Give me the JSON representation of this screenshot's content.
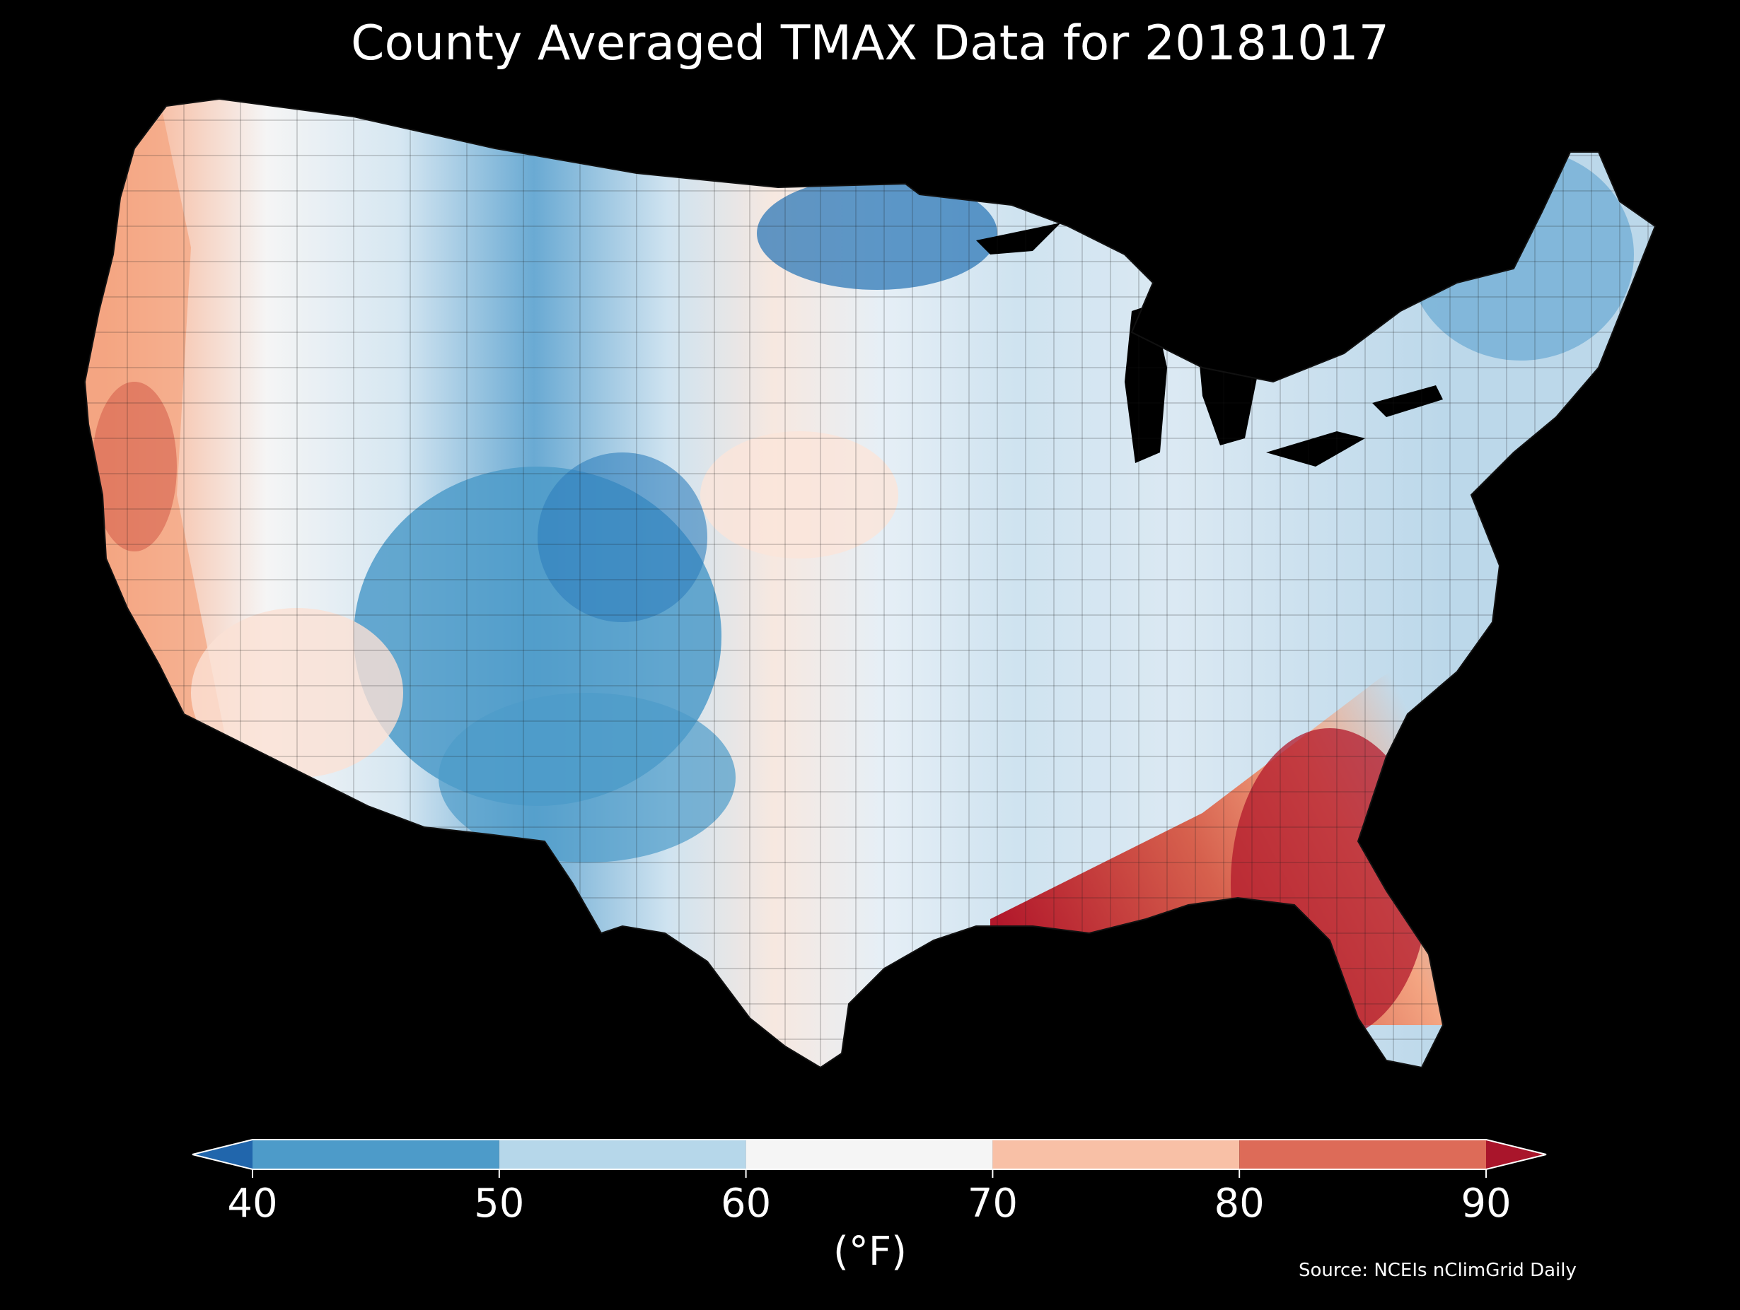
{
  "title": "County Averaged TMAX Data for 20181017",
  "colorbar": {
    "unit_label": "(°F)",
    "ticks": [
      "40",
      "50",
      "60",
      "70",
      "80",
      "90"
    ],
    "bins": [
      {
        "min": 40,
        "max": 50,
        "color": "#4d9bc9"
      },
      {
        "min": 50,
        "max": 60,
        "color": "#b6d7ea"
      },
      {
        "min": 60,
        "max": 70,
        "color": "#f5f5f5"
      },
      {
        "min": 70,
        "max": 80,
        "color": "#f8c0a6"
      },
      {
        "min": 80,
        "max": 90,
        "color": "#dd6b58"
      }
    ],
    "under_color": "#2166ac",
    "over_color": "#a9152b"
  },
  "source": "Source: NCEIs nClimGrid Daily"
}
